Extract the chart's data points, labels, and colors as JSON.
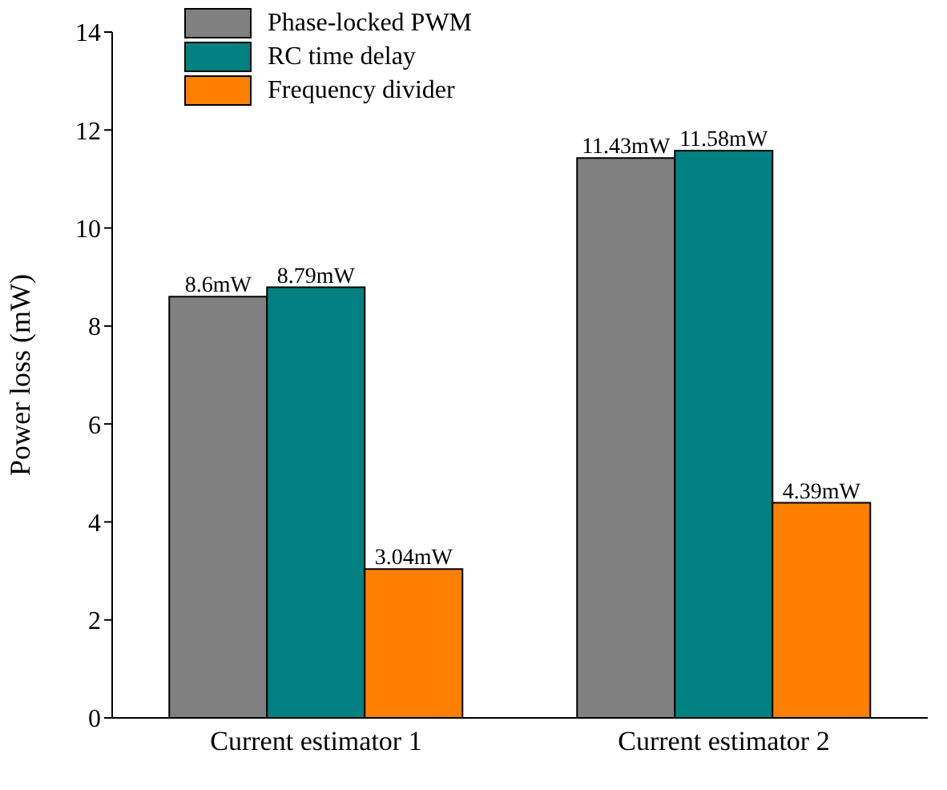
{
  "chart_data": {
    "type": "bar",
    "ylabel": "Power loss (mW)",
    "categories": [
      "Current estimator 1",
      "Current estimator 2"
    ],
    "series": [
      {
        "name": "Phase-locked PWM",
        "color": "#808080",
        "values": [
          8.6,
          11.43
        ],
        "value_labels": [
          "8.6mW",
          "11.43mW"
        ]
      },
      {
        "name": "RC time delay",
        "color": "#008080",
        "values": [
          8.79,
          11.58
        ],
        "value_labels": [
          "8.79mW",
          "11.58mW"
        ]
      },
      {
        "name": "Frequency divider",
        "color": "#ff8000",
        "values": [
          3.04,
          4.39
        ],
        "value_labels": [
          "3.04mW",
          "4.39mW"
        ]
      }
    ],
    "ylim": [
      0,
      14
    ],
    "yticks": [
      0,
      2,
      4,
      6,
      8,
      10,
      12,
      14
    ],
    "legend": "top left",
    "grid": false
  }
}
